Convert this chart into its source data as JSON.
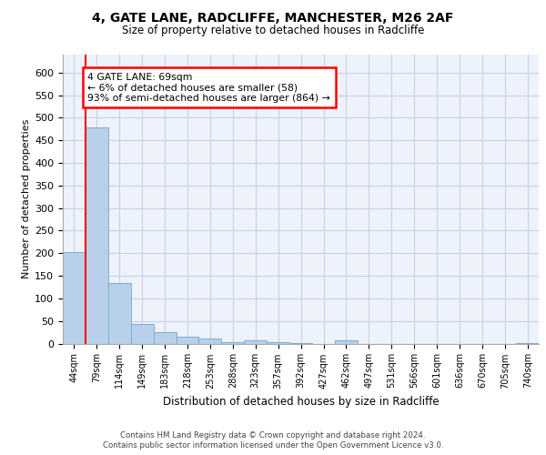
{
  "title1": "4, GATE LANE, RADCLIFFE, MANCHESTER, M26 2AF",
  "title2": "Size of property relative to detached houses in Radcliffe",
  "xlabel": "Distribution of detached houses by size in Radcliffe",
  "ylabel": "Number of detached properties",
  "bin_labels": [
    "44sqm",
    "79sqm",
    "114sqm",
    "149sqm",
    "183sqm",
    "218sqm",
    "253sqm",
    "288sqm",
    "323sqm",
    "357sqm",
    "392sqm",
    "427sqm",
    "462sqm",
    "497sqm",
    "531sqm",
    "566sqm",
    "601sqm",
    "636sqm",
    "670sqm",
    "705sqm",
    "740sqm"
  ],
  "bar_heights": [
    203,
    479,
    135,
    43,
    25,
    15,
    12,
    4,
    7,
    3,
    2,
    0,
    8,
    0,
    0,
    0,
    0,
    0,
    0,
    0,
    1
  ],
  "bar_color": "#b8d0ea",
  "bar_edge_color": "#7aafd4",
  "vline_color": "red",
  "annotation_text": "4 GATE LANE: 69sqm\n← 6% of detached houses are smaller (58)\n93% of semi-detached houses are larger (864) →",
  "annotation_box_color": "white",
  "annotation_box_edge": "red",
  "ylim": [
    0,
    640
  ],
  "yticks": [
    0,
    50,
    100,
    150,
    200,
    250,
    300,
    350,
    400,
    450,
    500,
    550,
    600
  ],
  "footer1": "Contains HM Land Registry data © Crown copyright and database right 2024.",
  "footer2": "Contains public sector information licensed under the Open Government Licence v3.0.",
  "background_color": "#eef2fb",
  "grid_color": "#c8d0e8",
  "fig_width": 6.0,
  "fig_height": 5.0,
  "dpi": 100
}
